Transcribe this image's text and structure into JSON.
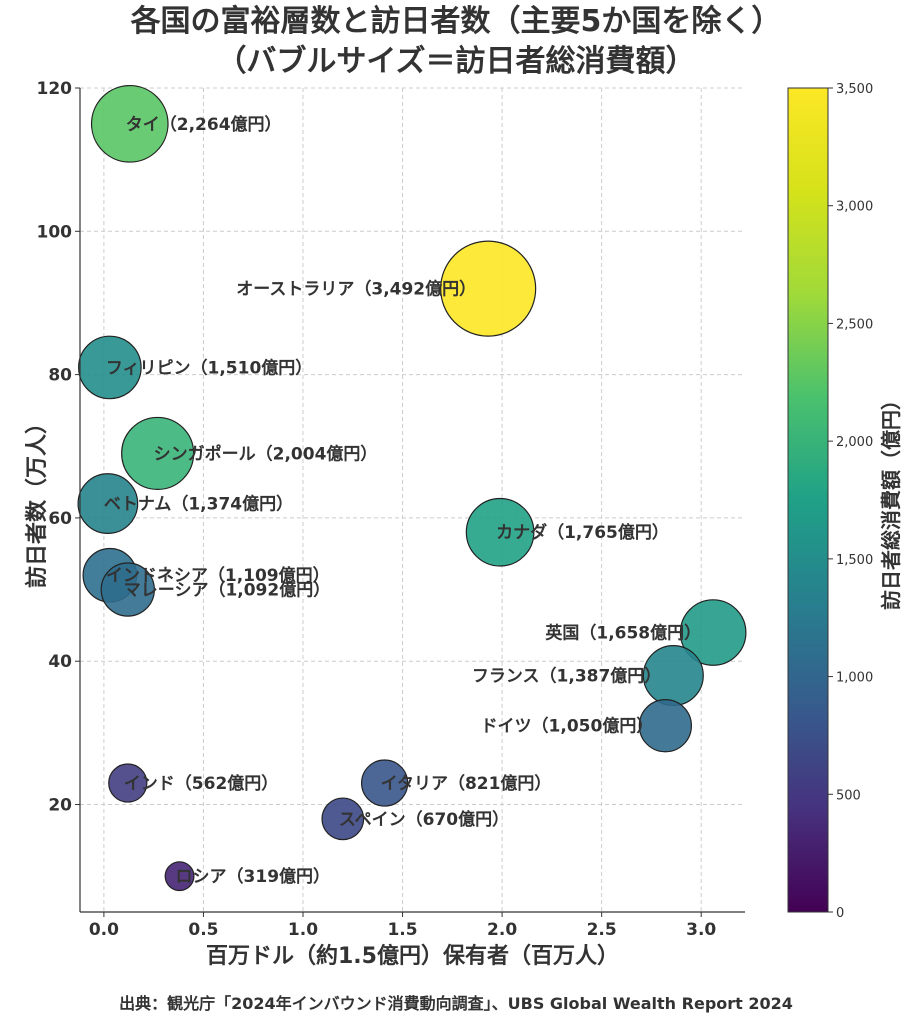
{
  "title_line1": "各国の富裕層数と訪日者数（主要5か国を除く）",
  "title_line2": "（バブルサイズ＝訪日者総消費額）",
  "source": "出典：観光庁「2024年インバウンド消費動向調査」、UBS Global Wealth Report 2024",
  "chart_data": {
    "type": "scatter",
    "xlabel": "百万ドル（約1.5億円）保有者（百万人）",
    "ylabel": "訪日者数（万人）",
    "colorbar_label": "訪日者総消費額（億円）",
    "xlim": [
      -0.12,
      3.22
    ],
    "ylim": [
      5,
      120
    ],
    "xticks": [
      "0.0",
      "0.5",
      "1.0",
      "1.5",
      "2.0",
      "2.5",
      "3.0"
    ],
    "xtick_values": [
      0,
      0.5,
      1.0,
      1.5,
      2.0,
      2.5,
      3.0
    ],
    "yticks": [
      "20",
      "40",
      "60",
      "80",
      "100",
      "120"
    ],
    "ytick_values": [
      20,
      40,
      60,
      80,
      100,
      120
    ],
    "colorbar_range": [
      0,
      3500
    ],
    "colorbar_ticks": [
      "0",
      "500",
      "1,000",
      "1,500",
      "2,000",
      "2,500",
      "3,000",
      "3,500"
    ],
    "colorbar_tick_values": [
      0,
      500,
      1000,
      1500,
      2000,
      2500,
      3000,
      3500
    ],
    "colormap": "viridis",
    "grid": true,
    "points": [
      {
        "label": "タイ（2,264億円）",
        "x": 0.13,
        "y": 115,
        "spend": 2264
      },
      {
        "label": "オーストラリア（3,492億円）",
        "x": 1.93,
        "y": 92,
        "spend": 3492
      },
      {
        "label": "フィリピン（1,510億円）",
        "x": 0.03,
        "y": 81,
        "spend": 1510
      },
      {
        "label": "シンガポール（2,004億円）",
        "x": 0.27,
        "y": 69,
        "spend": 2004
      },
      {
        "label": "ベトナム（1,374億円）",
        "x": 0.02,
        "y": 62,
        "spend": 1374
      },
      {
        "label": "カナダ（1,765億円）",
        "x": 1.99,
        "y": 58,
        "spend": 1765
      },
      {
        "label": "インドネシア（1,109億円）",
        "x": 0.03,
        "y": 52,
        "spend": 1109
      },
      {
        "label": "マレーシア（1,092億円）",
        "x": 0.12,
        "y": 50,
        "spend": 1092
      },
      {
        "label": "英国（1,658億円）",
        "x": 3.06,
        "y": 44,
        "spend": 1658
      },
      {
        "label": "フランス（1,387億円）",
        "x": 2.86,
        "y": 38,
        "spend": 1387
      },
      {
        "label": "ドイツ（1,050億円）",
        "x": 2.82,
        "y": 31,
        "spend": 1050
      },
      {
        "label": "インド（562億円）",
        "x": 0.12,
        "y": 23,
        "spend": 562
      },
      {
        "label": "イタリア（821億円）",
        "x": 1.41,
        "y": 23,
        "spend": 821
      },
      {
        "label": "スペイン（670億円）",
        "x": 1.2,
        "y": 18,
        "spend": 670
      },
      {
        "label": "ロシア（319億円）",
        "x": 0.38,
        "y": 10,
        "spend": 319
      }
    ]
  }
}
